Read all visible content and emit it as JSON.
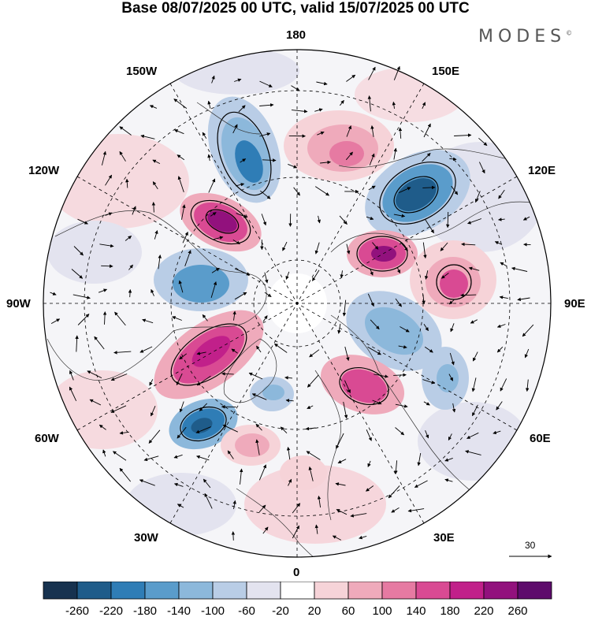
{
  "title": "Base 08/07/2025 00 UTC, valid 15/07/2025 00 UTC",
  "brand": "MODES",
  "brand_mark": "©",
  "longitude_labels": {
    "top": "180",
    "bottom": "0",
    "left": "90W",
    "right": "90E",
    "upper_left_1": "150W",
    "upper_left_2": "120W",
    "lower_left_1": "60W",
    "lower_left_2": "30W",
    "upper_right_1": "150E",
    "upper_right_2": "120E",
    "lower_right_1": "60E",
    "lower_right_2": "30E"
  },
  "reference_vector": {
    "label": "30"
  },
  "colorbar": {
    "colors": [
      "#17324f",
      "#1f5c8a",
      "#2f7db6",
      "#5a9ccb",
      "#8cb8db",
      "#b9cde6",
      "#e3e3ef",
      "#ffffff",
      "#f6d3d8",
      "#efaabb",
      "#e67aa2",
      "#d94a93",
      "#c1208a",
      "#92117d",
      "#5e0b6c"
    ],
    "labels": [
      "-260",
      "-220",
      "-180",
      "-140",
      "-100",
      "-60",
      "-20",
      "20",
      "60",
      "100",
      "140",
      "180",
      "220",
      "260"
    ]
  },
  "anomaly_centers": [
    {
      "sign": "negative",
      "level": 180,
      "color": "#2f7db6"
    },
    {
      "sign": "positive",
      "level": 220,
      "color": "#c1208a"
    },
    {
      "sign": "negative",
      "level": 140,
      "color": "#5a9ccb"
    },
    {
      "sign": "positive",
      "level": 220,
      "color": "#c1208a"
    },
    {
      "sign": "negative",
      "level": 220,
      "color": "#1f5c8a"
    },
    {
      "sign": "positive",
      "level": 220,
      "color": "#c1208a"
    },
    {
      "sign": "positive",
      "level": 180,
      "color": "#d94a93"
    },
    {
      "sign": "negative",
      "level": 140,
      "color": "#5a9ccb"
    },
    {
      "sign": "positive",
      "level": 180,
      "color": "#d94a93"
    },
    {
      "sign": "negative",
      "level": 220,
      "color": "#1f5c8a"
    },
    {
      "sign": "positive",
      "level": 140,
      "color": "#e67aa2"
    },
    {
      "sign": "positive",
      "level": 60,
      "color": "#f6d3d8"
    }
  ]
}
